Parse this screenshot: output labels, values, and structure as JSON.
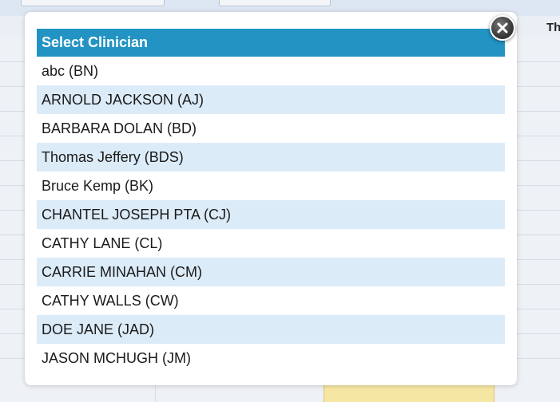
{
  "background": {
    "day_label": "Th"
  },
  "modal": {
    "title": "Select Clinician",
    "close_icon": "close-icon",
    "clinicians": [
      "abc (BN)",
      "ARNOLD JACKSON (AJ)",
      "BARBARA DOLAN (BD)",
      "Thomas Jeffery (BDS)",
      "Bruce Kemp (BK)",
      "CHANTEL JOSEPH PTA (CJ)",
      "CATHY LANE (CL)",
      "CARRIE MINAHAN (CM)",
      "CATHY WALLS (CW)",
      "DOE JANE (JAD)",
      "JASON MCHUGH (JM)"
    ]
  },
  "colors": {
    "header_bg": "#2293c3",
    "row_alt_bg": "#dcebf8",
    "highlight_cell": "#f6e6a3"
  }
}
